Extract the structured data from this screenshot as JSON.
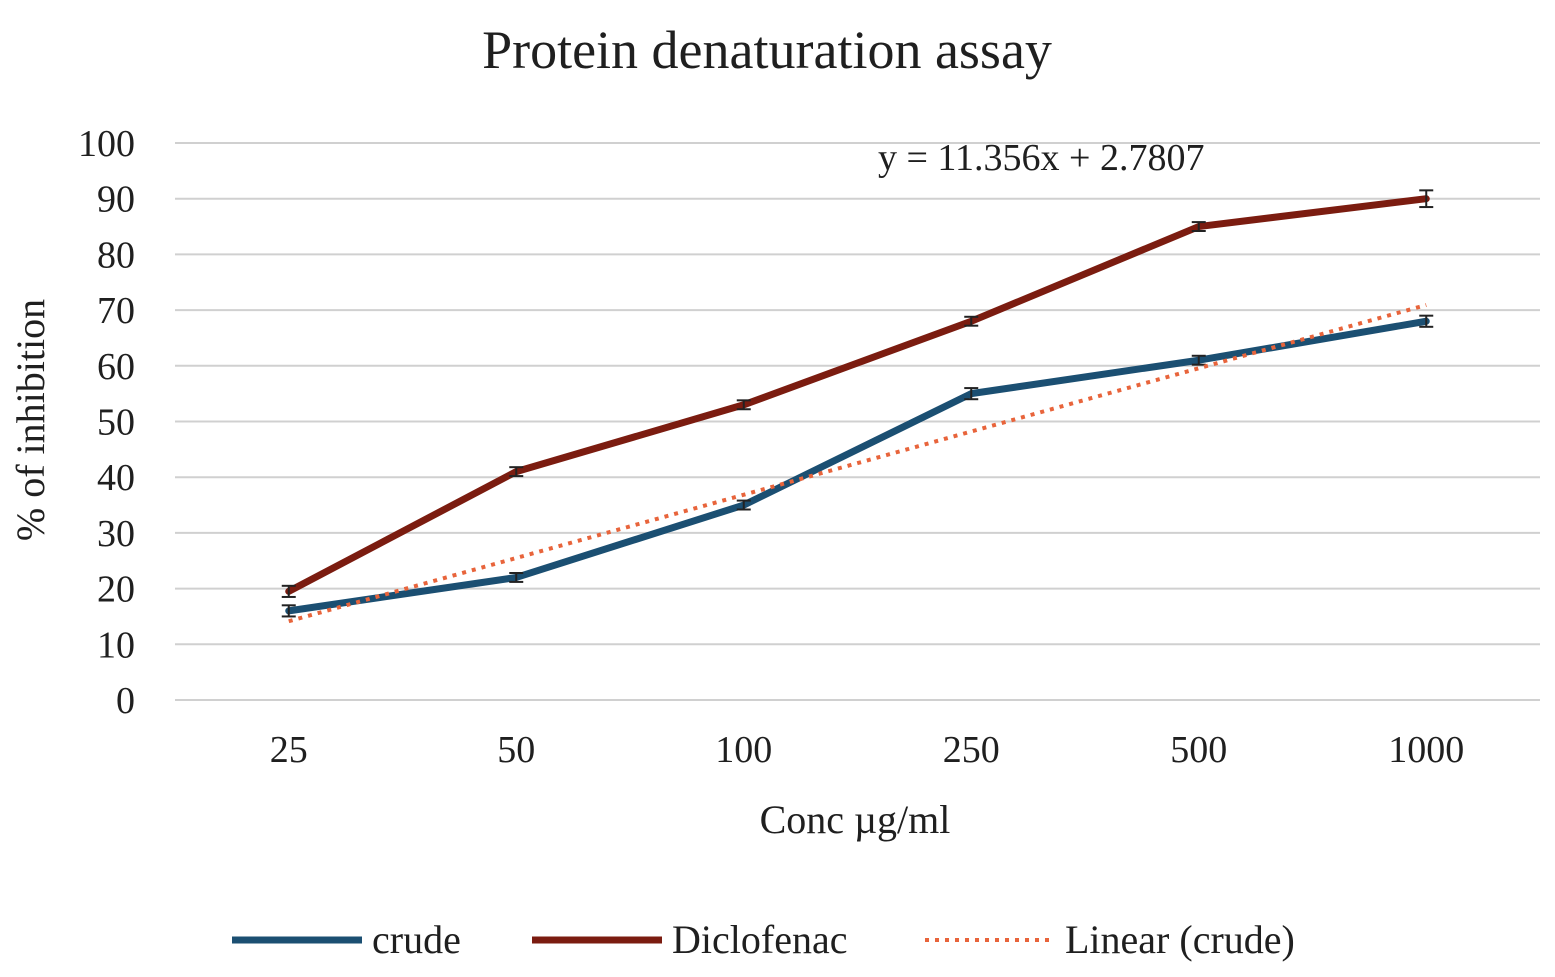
{
  "chart_data": {
    "type": "line",
    "title": "Protein denaturation assay",
    "xlabel": "Conc µg/ml",
    "ylabel": "% of inhibition",
    "categories": [
      "25",
      "50",
      "100",
      "250",
      "500",
      "1000"
    ],
    "ylim": [
      0,
      100
    ],
    "yticks": [
      0,
      10,
      20,
      30,
      40,
      50,
      60,
      70,
      80,
      90,
      100
    ],
    "grid": true,
    "legend_position": "bottom",
    "series": [
      {
        "name": "crude",
        "values": [
          16,
          22,
          35,
          55,
          61,
          68
        ],
        "error": [
          1,
          0.8,
          0.8,
          1,
          0.8,
          1
        ],
        "color": "#1b4f72",
        "style": "solid"
      },
      {
        "name": "Diclofenac",
        "values": [
          19.5,
          41,
          53,
          68,
          85,
          90
        ],
        "error": [
          1,
          0.8,
          0.8,
          0.8,
          0.8,
          1.5
        ],
        "color": "#7b1c10",
        "style": "solid"
      }
    ],
    "trendline": {
      "name": "Linear (crude)",
      "of_series": "crude",
      "slope": 11.356,
      "intercept": 2.7807,
      "color": "#e8643b",
      "style": "dotted"
    },
    "annotations": [
      {
        "text": "y = 11.356x + 2.7807"
      }
    ]
  }
}
